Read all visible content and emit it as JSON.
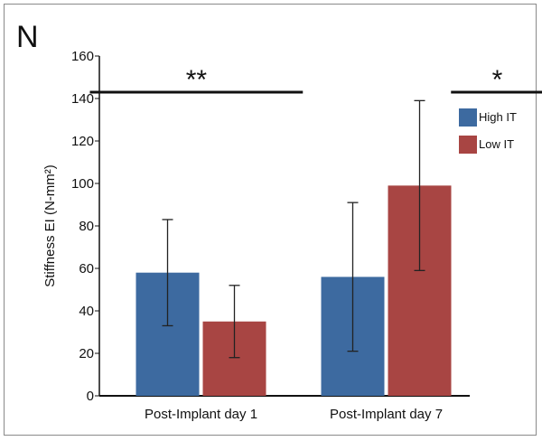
{
  "panel_label": "N",
  "chart_data": {
    "type": "bar",
    "categories": [
      "Post-Implant day 1",
      "Post-Implant day 7"
    ],
    "series": [
      {
        "name": "High IT",
        "color": "#3d6aa0",
        "values": [
          58,
          56
        ],
        "errors": [
          25,
          35
        ]
      },
      {
        "name": "Low IT",
        "color": "#a84543",
        "values": [
          35,
          99
        ],
        "errors": [
          17,
          40
        ]
      }
    ],
    "ylabel": "Stiffness EI (N-mm²)",
    "ylim": [
      0,
      160
    ],
    "yticks": [
      0,
      20,
      40,
      60,
      80,
      100,
      120,
      140,
      160
    ],
    "legend_position": "right",
    "significance": [
      {
        "label": "**",
        "x_range": [
          -0.6,
          0.55
        ],
        "y": 143
      },
      {
        "label": "*",
        "x_range": [
          1.35,
          1.85
        ],
        "y": 143
      }
    ]
  }
}
